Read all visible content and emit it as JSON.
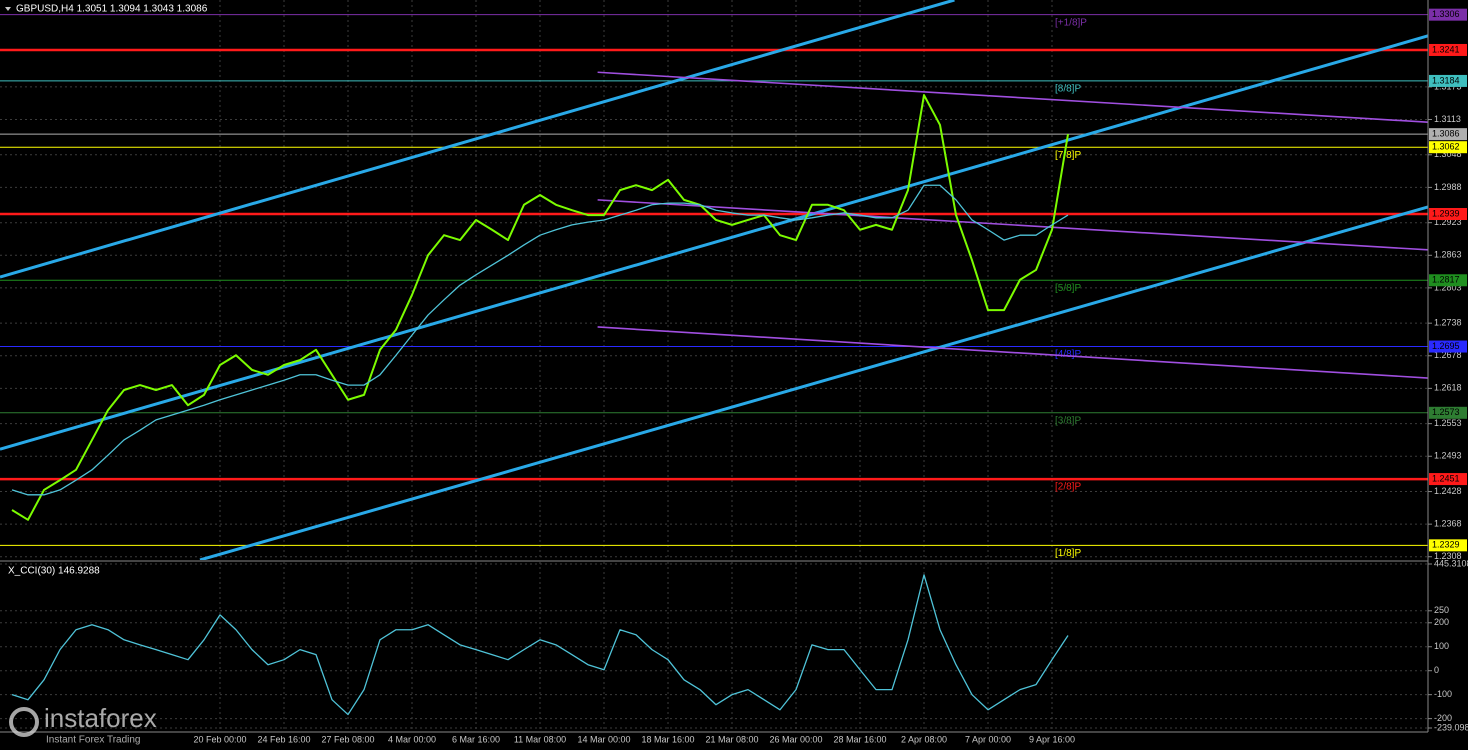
{
  "chart_data": [
    {
      "type": "line",
      "title": "GBPUSD,H4 1.3051 1.3094 1.3043 1.3086",
      "categories": [
        null,
        null,
        null,
        null,
        null,
        null,
        null,
        null,
        null,
        null,
        null,
        null,
        null,
        "20 Feb 00:00",
        null,
        null,
        null,
        "24 Feb 16:00",
        null,
        null,
        null,
        "27 Feb 08:00",
        null,
        null,
        null,
        "4 Mar 00:00",
        null,
        null,
        null,
        "6 Mar 16:00",
        null,
        null,
        null,
        "11 Mar 08:00",
        null,
        null,
        null,
        "14 Mar 00:00",
        null,
        null,
        null,
        "18 Mar 16:00",
        null,
        null,
        null,
        "21 Mar 08:00",
        null,
        null,
        null,
        "26 Mar 00:00",
        null,
        null,
        null,
        "28 Mar 16:00",
        null,
        null,
        null,
        "2 Apr 08:00",
        null,
        null,
        null,
        "7 Apr 00:00",
        null,
        null,
        null,
        "9 Apr 16:00",
        null
      ],
      "series": [
        {
          "color": "#7cfc00",
          "values": [
            1.2394,
            1.2376,
            1.2431,
            1.2449,
            1.2468,
            1.2523,
            1.2578,
            1.2615,
            1.2624,
            1.2615,
            1.2624,
            1.2587,
            1.2606,
            1.2661,
            1.2679,
            1.2652,
            1.2643,
            1.2661,
            1.267,
            1.2689,
            1.2643,
            1.2597,
            1.2606,
            1.2689,
            1.2726,
            1.279,
            1.2863,
            1.29,
            1.2891,
            1.2928,
            1.291,
            1.2891,
            1.2956,
            1.2974,
            1.2956,
            1.2946,
            1.2937,
            1.2937,
            1.2983,
            1.2992,
            1.2983,
            1.3002,
            1.2965,
            1.2956,
            1.2928,
            1.2919,
            1.2928,
            1.2937,
            1.29,
            1.2891,
            1.2956,
            1.2956,
            1.2946,
            1.291,
            1.2919,
            1.291,
            1.2983,
            1.3158,
            1.3103,
            1.2937,
            1.2854,
            1.2762,
            1.2762,
            1.2818,
            1.2836,
            1.291,
            1.3086
          ]
        },
        {
          "color": "#4fc3d8",
          "values": [
            1.2431,
            1.2422,
            1.2422,
            1.2431,
            1.2449,
            1.2468,
            1.2495,
            1.2523,
            1.2541,
            1.256,
            1.2569,
            1.2578,
            1.2587,
            1.2597,
            1.2606,
            1.2615,
            1.2624,
            1.2633,
            1.2643,
            1.2643,
            1.2633,
            1.2624,
            1.2624,
            1.2643,
            1.2679,
            1.2716,
            1.2753,
            1.2781,
            1.2808,
            1.2827,
            1.2845,
            1.2863,
            1.2882,
            1.29,
            1.291,
            1.2919,
            1.2924,
            1.2928,
            1.2937,
            1.2946,
            1.2956,
            1.2959,
            1.2959,
            1.2956,
            1.2946,
            1.2941,
            1.2937,
            1.2937,
            1.2932,
            1.2928,
            1.2932,
            1.2937,
            1.2941,
            1.2937,
            1.2932,
            1.2932,
            1.2946,
            1.2992,
            1.2992,
            1.2965,
            1.2928,
            1.291,
            1.2891,
            1.29,
            1.29,
            1.2919,
            1.2937
          ]
        }
      ],
      "ylim": [
        1.2302,
        1.3333
      ],
      "yticks": [
        1.3173,
        1.3113,
        1.3048,
        1.2988,
        1.2923,
        1.2863,
        1.2803,
        1.2738,
        1.2678,
        1.2618,
        1.2553,
        1.2493,
        1.2428,
        1.2368,
        1.2308
      ],
      "grid": true,
      "levels": [
        {
          "value": 1.3306,
          "color": "#7b2fa8",
          "label": "[+1/8]P"
        },
        {
          "value": 1.3241,
          "color": "#ff1a1a"
        },
        {
          "value": 1.3184,
          "color": "#3fbfbf",
          "label": "[8/8]P"
        },
        {
          "value": 1.3086,
          "color": "#b0b0b0"
        },
        {
          "value": 1.3062,
          "color": "#ffff00",
          "label": "[7/8]P"
        },
        {
          "value": 1.2939,
          "color": "#ff1a1a"
        },
        {
          "value": 1.2817,
          "color": "#1f8f1f",
          "label": "[5/8]P"
        },
        {
          "value": 1.2695,
          "color": "#2a2aff",
          "label": "[4/8]P"
        },
        {
          "value": 1.2573,
          "color": "#2e7d32",
          "label": "[3/8]P"
        },
        {
          "value": 1.2451,
          "color": "#ff1a1a",
          "label": "[2/8]P"
        },
        {
          "value": 1.2329,
          "color": "#ffff00",
          "label": "[1/8]P"
        }
      ],
      "channels": [
        {
          "color": "#29a9e8",
          "points": [
            [
              -0.75,
              1.2823
            ],
            [
              58.9,
              1.3333
            ]
          ]
        },
        {
          "color": "#29a9e8",
          "points": [
            [
              -0.75,
              1.2506
            ],
            [
              88.5,
              1.3267
            ]
          ]
        },
        {
          "color": "#29a9e8",
          "points": [
            [
              11.75,
              1.2302
            ],
            [
              88.5,
              1.2952
            ]
          ]
        },
        {
          "color": "#a04fe0",
          "points": [
            [
              36.6,
              1.32
            ],
            [
              88.5,
              1.3108
            ]
          ]
        },
        {
          "color": "#a04fe0",
          "points": [
            [
              36.6,
              1.2965
            ],
            [
              88.5,
              1.2873
            ]
          ]
        },
        {
          "color": "#a04fe0",
          "points": [
            [
              36.6,
              1.2731
            ],
            [
              88.5,
              1.2637
            ]
          ]
        }
      ]
    },
    {
      "type": "line",
      "title": "X_CCI(30) 146.9288",
      "series": [
        {
          "color": "#4fc3d8",
          "values": [
            -100,
            -121,
            -38,
            88,
            171,
            192,
            171,
            129,
            108,
            88,
            67,
            46,
            129,
            233,
            171,
            88,
            25,
            46,
            88,
            67,
            -121,
            -183,
            -79,
            129,
            171,
            171,
            192,
            150,
            108,
            88,
            67,
            46,
            88,
            129,
            108,
            67,
            25,
            4,
            171,
            150,
            88,
            46,
            -38,
            -79,
            -142,
            -100,
            -79,
            -121,
            -163,
            -79,
            108,
            88,
            88,
            4,
            -79,
            -79,
            129,
            400,
            171,
            25,
            -100,
            -163,
            -121,
            -79,
            -58,
            46,
            146.9288
          ]
        }
      ],
      "ylim": [
        -239.0982,
        445.3108
      ],
      "yticks": [
        445.3108,
        250,
        200,
        100,
        0,
        -100,
        -200,
        -239.0982
      ],
      "grid": true
    }
  ],
  "watermark": {
    "brand": "instaforex",
    "tagline": "Instant Forex Trading"
  }
}
